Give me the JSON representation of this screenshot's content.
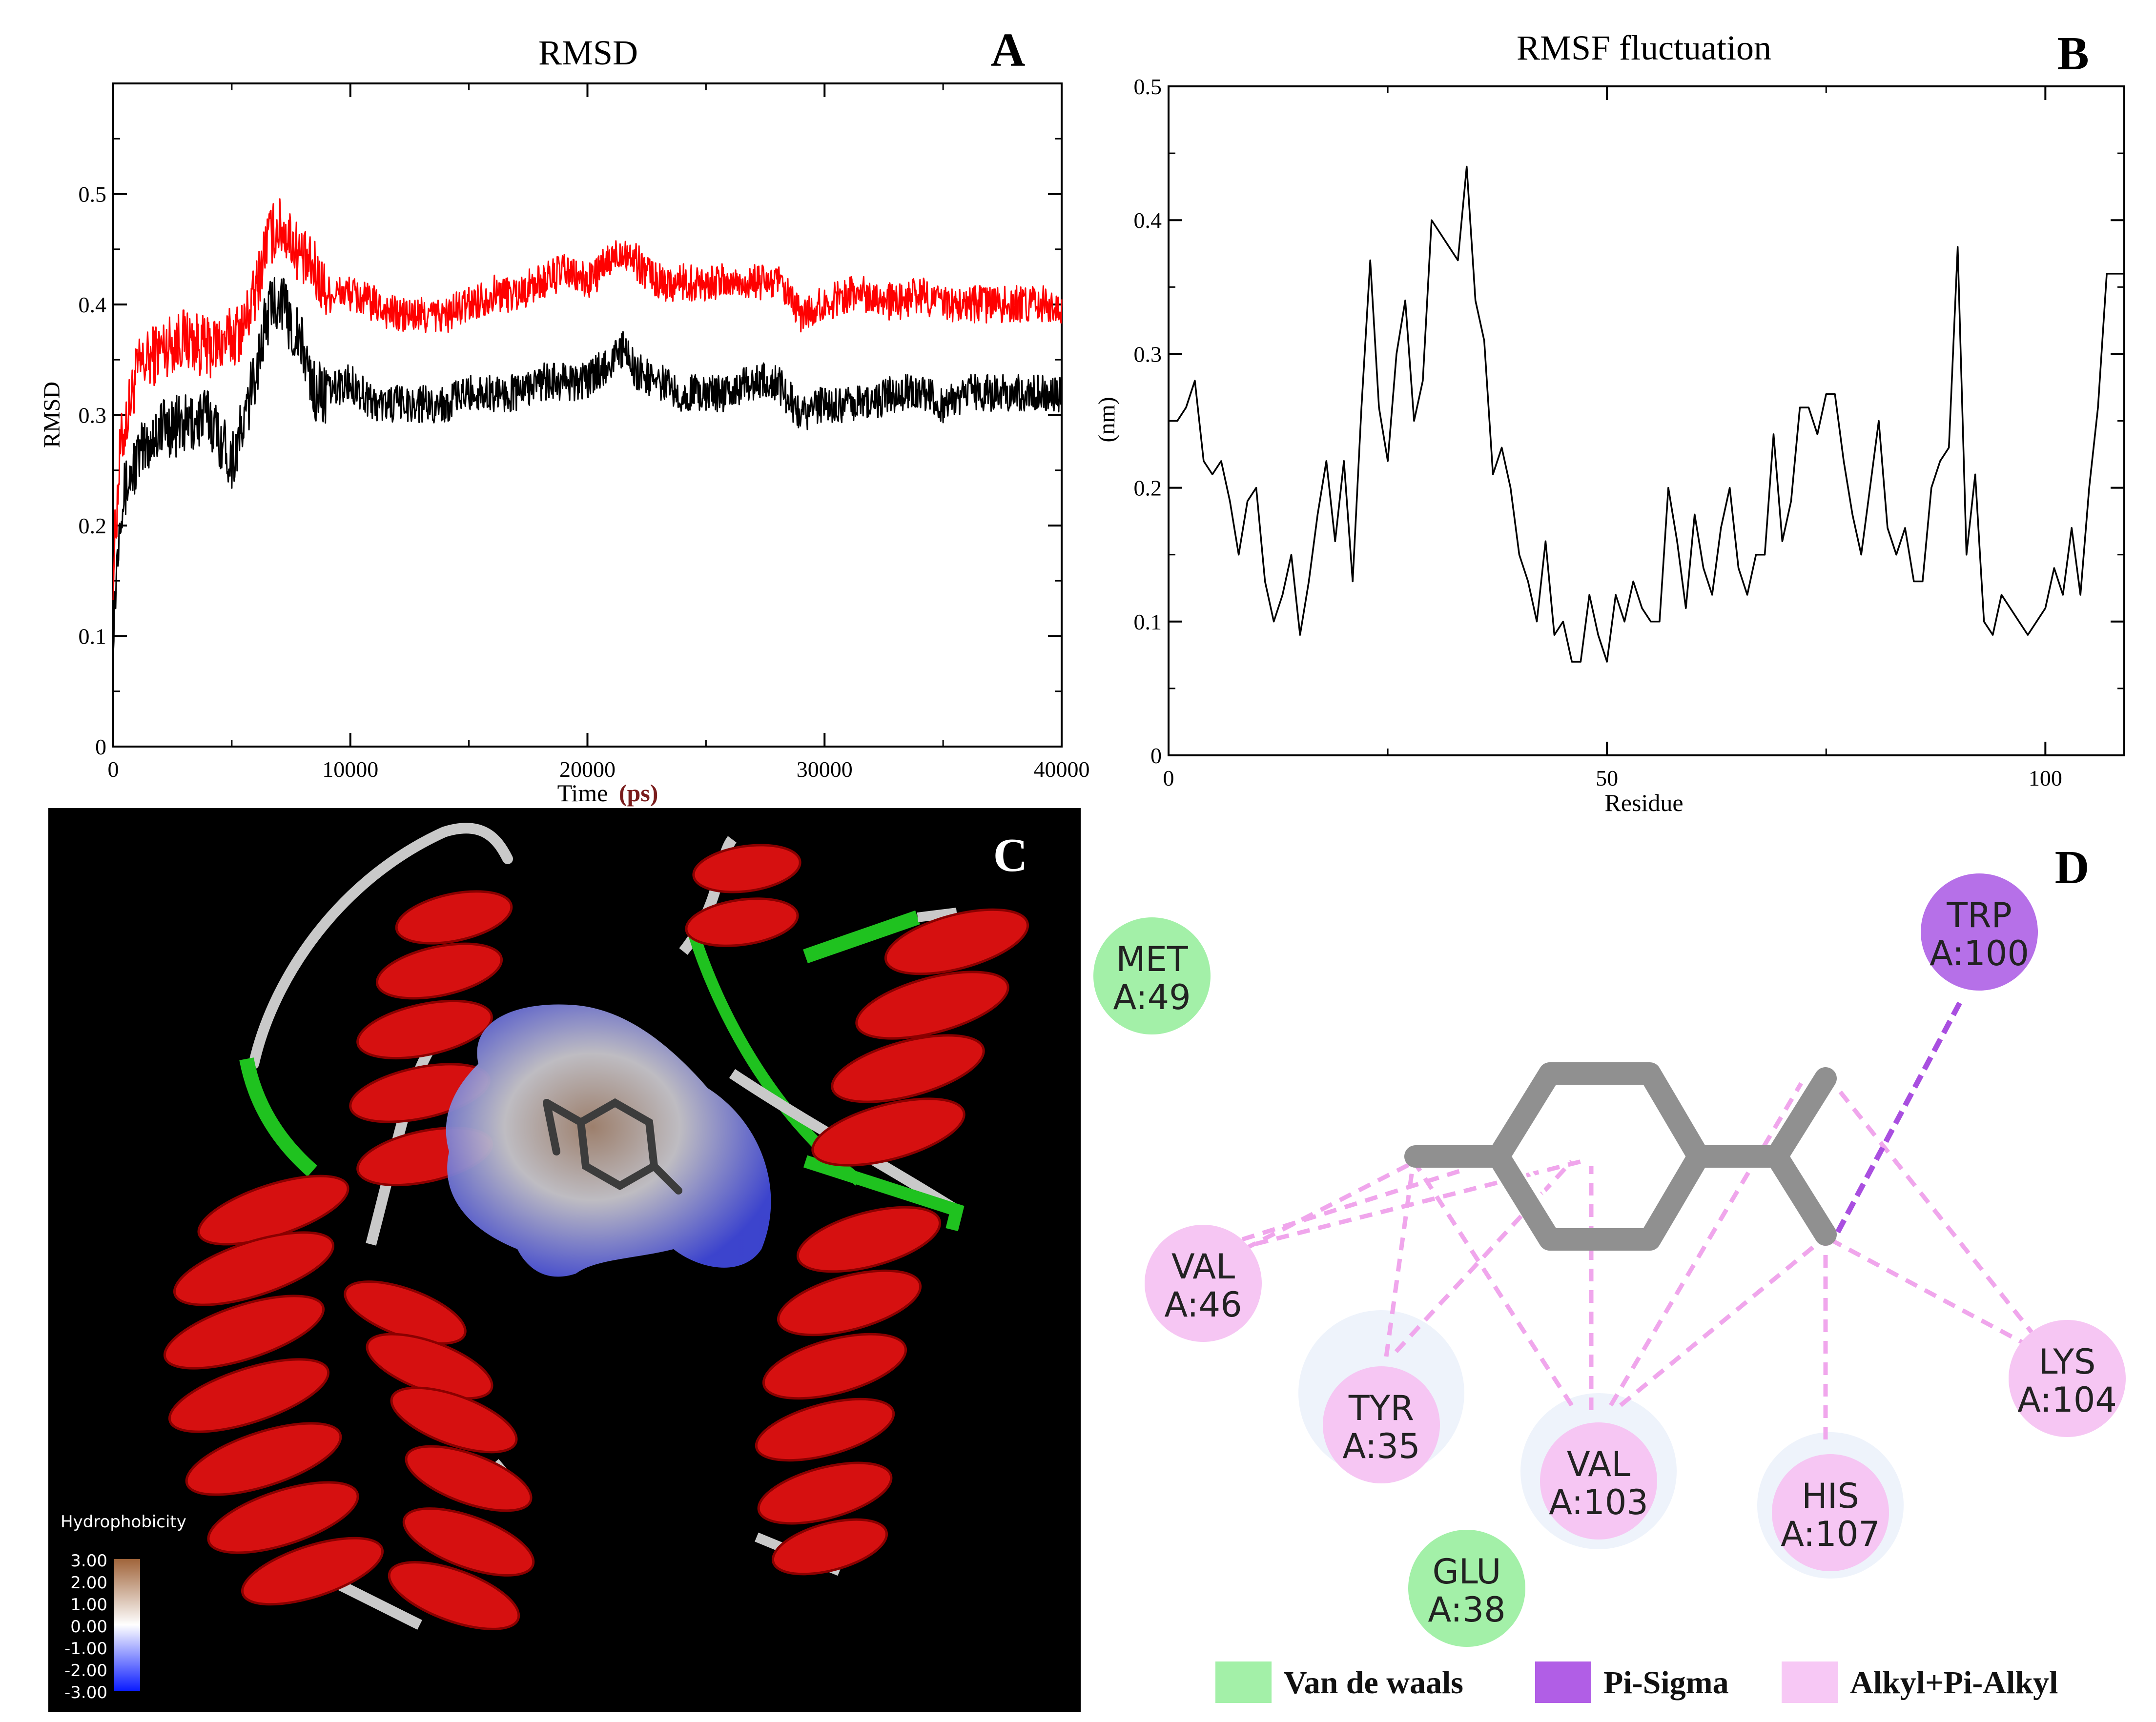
{
  "panels": {
    "a": {
      "letter": "A"
    },
    "b": {
      "letter": "B"
    },
    "c": {
      "letter": "C"
    },
    "d": {
      "letter": "D"
    }
  },
  "chart_data": [
    {
      "type": "line",
      "panel": "A",
      "title": "RMSD",
      "xlabel": "Time",
      "xlabel_unit": "(ps)",
      "ylabel": "RMSD",
      "xlim": [
        0,
        40000
      ],
      "ylim": [
        0,
        0.6
      ],
      "xticks": [
        0,
        10000,
        20000,
        30000,
        40000
      ],
      "xtick_labels": [
        "0",
        "10000",
        "20000",
        "30000",
        "40000"
      ],
      "yticks": [
        0,
        0.1,
        0.2,
        0.3,
        0.4,
        0.5
      ],
      "ytick_labels": [
        "0",
        "0.1",
        "0.2",
        "0.3",
        "0.4",
        "0.5"
      ],
      "grid": false,
      "series": [
        {
          "color": "#ff0000",
          "x": [
            0,
            300,
            1000,
            2000,
            3000,
            4000,
            5000,
            5500,
            6000,
            6500,
            7000,
            7500,
            8000,
            8500,
            9000,
            10000,
            11000,
            12000,
            13000,
            14000,
            15000,
            16000,
            17000,
            18000,
            19000,
            20000,
            21000,
            21500,
            22000,
            23000,
            24000,
            25000,
            26000,
            27000,
            28000,
            29000,
            30000,
            31000,
            32000,
            33000,
            34000,
            35000,
            36000,
            37000,
            38000,
            39000,
            40000
          ],
          "y": [
            0.16,
            0.27,
            0.34,
            0.36,
            0.37,
            0.36,
            0.37,
            0.38,
            0.41,
            0.46,
            0.47,
            0.46,
            0.44,
            0.43,
            0.41,
            0.41,
            0.4,
            0.39,
            0.39,
            0.39,
            0.4,
            0.41,
            0.41,
            0.42,
            0.43,
            0.42,
            0.44,
            0.45,
            0.44,
            0.42,
            0.42,
            0.42,
            0.42,
            0.42,
            0.42,
            0.39,
            0.4,
            0.41,
            0.41,
            0.4,
            0.41,
            0.4,
            0.4,
            0.4,
            0.4,
            0.4,
            0.4
          ]
        },
        {
          "color": "#000000",
          "x": [
            0,
            300,
            1000,
            2000,
            3000,
            4000,
            5000,
            5500,
            6000,
            6500,
            7000,
            7500,
            8000,
            8500,
            9000,
            10000,
            11000,
            12000,
            13000,
            14000,
            15000,
            16000,
            17000,
            18000,
            19000,
            20000,
            21000,
            21500,
            22000,
            23000,
            24000,
            25000,
            26000,
            27000,
            28000,
            29000,
            30000,
            31000,
            32000,
            33000,
            34000,
            35000,
            36000,
            37000,
            38000,
            39000,
            40000
          ],
          "y": [
            0.11,
            0.22,
            0.26,
            0.29,
            0.29,
            0.3,
            0.26,
            0.29,
            0.34,
            0.39,
            0.41,
            0.38,
            0.36,
            0.32,
            0.32,
            0.33,
            0.31,
            0.31,
            0.31,
            0.31,
            0.32,
            0.32,
            0.32,
            0.33,
            0.33,
            0.33,
            0.35,
            0.36,
            0.34,
            0.33,
            0.32,
            0.32,
            0.32,
            0.33,
            0.33,
            0.3,
            0.31,
            0.31,
            0.31,
            0.32,
            0.32,
            0.31,
            0.32,
            0.32,
            0.32,
            0.32,
            0.32
          ]
        }
      ]
    },
    {
      "type": "line",
      "panel": "B",
      "title": "RMSF fluctuation",
      "xlabel": "Residue",
      "ylabel": "(nm)",
      "xlim": [
        0,
        109
      ],
      "ylim": [
        0,
        0.5
      ],
      "xticks": [
        0,
        50,
        100
      ],
      "xtick_labels": [
        "0",
        "50",
        "100"
      ],
      "yticks": [
        0,
        0.1,
        0.2,
        0.3,
        0.4,
        0.5
      ],
      "ytick_labels": [
        "0",
        "0.1",
        "0.2",
        "0.3",
        "0.4",
        "0.5"
      ],
      "grid": false,
      "series": [
        {
          "color": "#000000",
          "x": [
            0,
            1,
            2,
            3,
            4,
            5,
            6,
            7,
            8,
            9,
            10,
            11,
            12,
            13,
            14,
            15,
            16,
            17,
            18,
            19,
            20,
            21,
            22,
            23,
            24,
            25,
            26,
            27,
            28,
            29,
            30,
            31,
            32,
            33,
            34,
            35,
            36,
            37,
            38,
            39,
            40,
            41,
            42,
            43,
            44,
            45,
            46,
            47,
            48,
            49,
            50,
            51,
            52,
            53,
            54,
            55,
            56,
            57,
            58,
            59,
            60,
            61,
            62,
            63,
            64,
            65,
            66,
            67,
            68,
            69,
            70,
            71,
            72,
            73,
            74,
            75,
            76,
            77,
            78,
            79,
            80,
            81,
            82,
            83,
            84,
            85,
            86,
            87,
            88,
            89,
            90,
            91,
            92,
            93,
            94,
            95,
            96,
            97,
            98,
            99,
            100,
            101,
            102,
            103,
            104,
            105,
            106,
            107,
            108,
            109
          ],
          "y": [
            0.25,
            0.25,
            0.26,
            0.28,
            0.22,
            0.21,
            0.22,
            0.19,
            0.15,
            0.19,
            0.2,
            0.13,
            0.1,
            0.12,
            0.15,
            0.09,
            0.13,
            0.18,
            0.22,
            0.16,
            0.22,
            0.13,
            0.26,
            0.37,
            0.26,
            0.22,
            0.3,
            0.34,
            0.25,
            0.28,
            0.4,
            0.39,
            0.38,
            0.37,
            0.44,
            0.34,
            0.31,
            0.21,
            0.23,
            0.2,
            0.15,
            0.13,
            0.1,
            0.16,
            0.09,
            0.1,
            0.07,
            0.07,
            0.12,
            0.09,
            0.07,
            0.12,
            0.1,
            0.13,
            0.11,
            0.1,
            0.1,
            0.2,
            0.16,
            0.11,
            0.18,
            0.14,
            0.12,
            0.17,
            0.2,
            0.14,
            0.12,
            0.15,
            0.15,
            0.24,
            0.16,
            0.19,
            0.26,
            0.26,
            0.24,
            0.27,
            0.27,
            0.22,
            0.18,
            0.15,
            0.2,
            0.25,
            0.17,
            0.15,
            0.17,
            0.13,
            0.13,
            0.2,
            0.22,
            0.23,
            0.38,
            0.15,
            0.21,
            0.1,
            0.09,
            0.12,
            0.11,
            0.1,
            0.09,
            0.1,
            0.11,
            0.14,
            0.12,
            0.17,
            0.12,
            0.2,
            0.26,
            0.36,
            0.36,
            0.36
          ]
        }
      ]
    }
  ],
  "hydrophobicity": {
    "title": "Hydrophobicity",
    "ticks": [
      "3.00",
      "2.00",
      "1.00",
      "0.00",
      "-1.00",
      "-2.00",
      "-3.00"
    ],
    "colors": {
      "top": "#a0643a",
      "mid": "#ffffff",
      "bottom": "#0b1cff"
    }
  },
  "interactions": {
    "residues": [
      {
        "name": "MET",
        "id": "A:49",
        "type": "vdw"
      },
      {
        "name": "TRP",
        "id": "A:100",
        "type": "pi_sigma"
      },
      {
        "name": "VAL",
        "id": "A:46",
        "type": "alkyl"
      },
      {
        "name": "TYR",
        "id": "A:35",
        "type": "alkyl"
      },
      {
        "name": "VAL",
        "id": "A:103",
        "type": "alkyl"
      },
      {
        "name": "HIS",
        "id": "A:107",
        "type": "alkyl"
      },
      {
        "name": "LYS",
        "id": "A:104",
        "type": "alkyl"
      },
      {
        "name": "GLU",
        "id": "A:38",
        "type": "vdw"
      }
    ],
    "legend": [
      {
        "label": "Van de waals",
        "color": "#a3f0a8"
      },
      {
        "label": "Pi-Sigma",
        "color": "#b15ee6"
      },
      {
        "label": "Alkyl+Pi-Alkyl",
        "color": "#f7c8f5"
      }
    ],
    "colors": {
      "vdw": "#a3f0a8",
      "pi_sigma": "#b670e8",
      "alkyl": "#f6c6f3",
      "alkyl_line": "#f0a6ec",
      "pi_sigma_line": "#a94fe0",
      "ligand": "#909090"
    }
  }
}
